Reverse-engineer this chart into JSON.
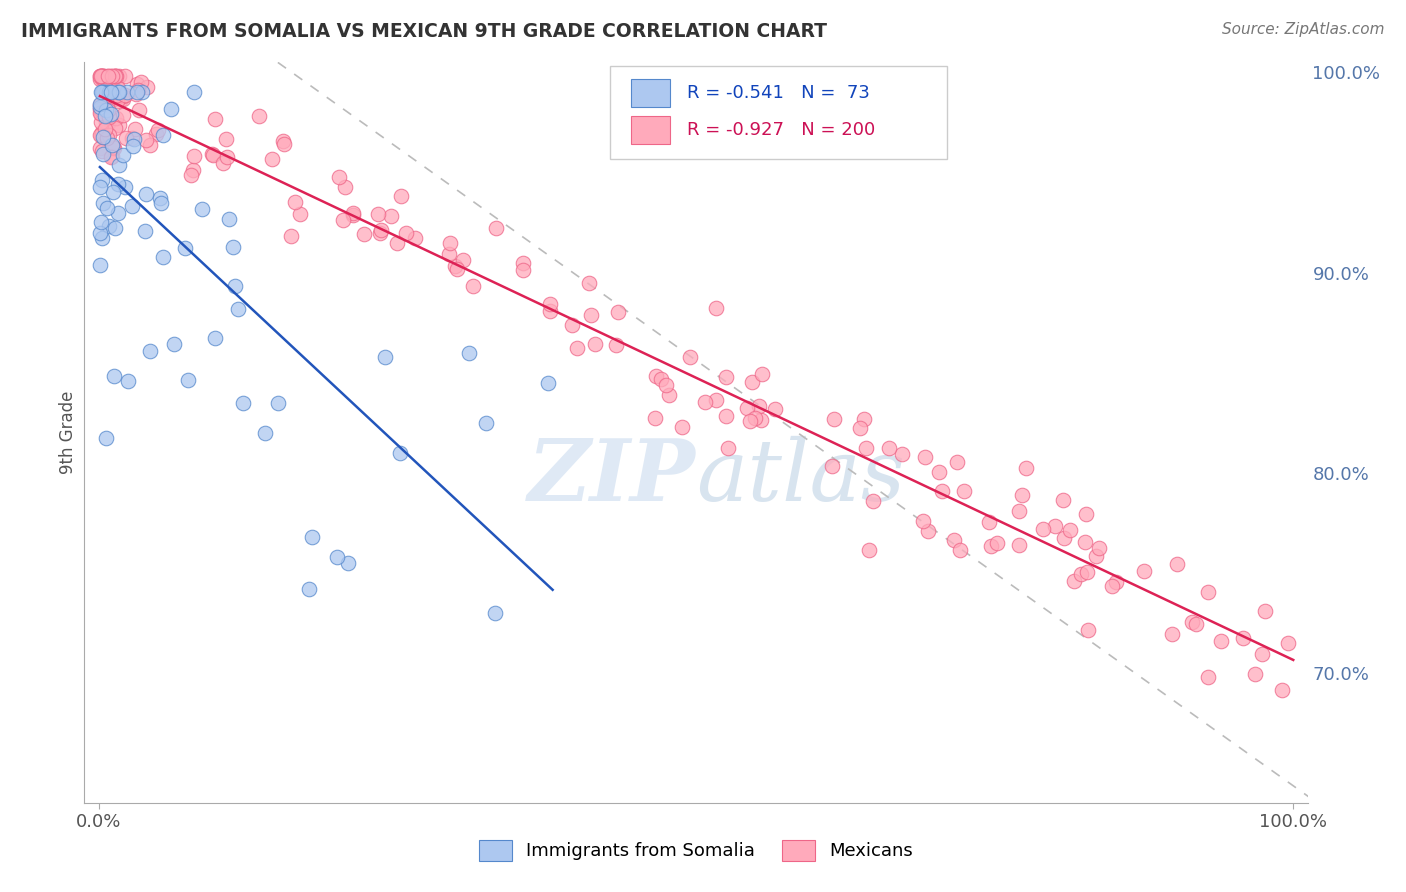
{
  "title": "IMMIGRANTS FROM SOMALIA VS MEXICAN 9TH GRADE CORRELATION CHART",
  "source_text": "Source: ZipAtlas.com",
  "ylabel": "9th Grade",
  "x_min": 0.0,
  "x_max": 1.0,
  "y_min": 0.635,
  "y_max": 1.005,
  "yticks": [
    0.7,
    0.8,
    0.9,
    1.0
  ],
  "ytick_labels": [
    "70.0%",
    "80.0%",
    "90.0%",
    "100.0%"
  ],
  "legend_R1": "-0.541",
  "legend_N1": "73",
  "legend_R2": "-0.927",
  "legend_N2": "200",
  "somalia_color": "#adc8f0",
  "somalia_edge": "#5588cc",
  "somalia_line_color": "#2255bb",
  "mexican_color": "#ffaabb",
  "mexican_edge": "#ee6688",
  "mexican_line_color": "#dd2255",
  "ref_line_color": "#bbbbbb",
  "background_color": "#ffffff",
  "grid_color": "#cccccc",
  "title_color": "#333333",
  "watermark_color_zip": "#b8cce4",
  "watermark_color_atlas": "#c8d8ec",
  "somalia_seed": 42,
  "mexican_seed": 99
}
